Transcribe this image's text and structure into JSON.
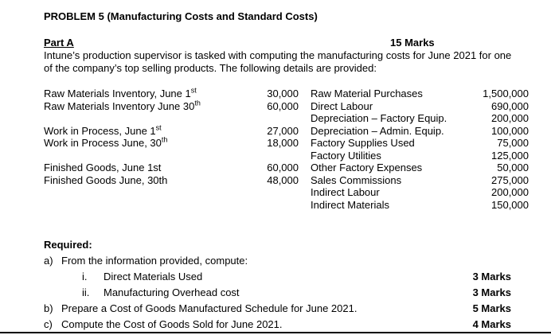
{
  "title": "PROBLEM 5 (Manufacturing Costs and Standard Costs)",
  "part_a": {
    "label": "Part A",
    "marks": "15 Marks",
    "intro": "Intune’s production supervisor is tasked with computing the manufacturing costs for June 2021 for one of the company’s top selling products. The following details are provided:"
  },
  "details_table": {
    "rows": [
      {
        "left": {
          "text": "Raw Materials Inventory, June 1",
          "sup": "st"
        },
        "left_value": "30,000",
        "right": "Raw Material Purchases",
        "right_value": "1,500,000"
      },
      {
        "left": {
          "text": "Raw Materials Inventory  June 30",
          "sup": "th"
        },
        "left_value": "60,000",
        "right": "Direct Labour",
        "right_value": "690,000"
      },
      {
        "left": null,
        "left_value": "",
        "right": "Depreciation – Factory Equip.",
        "right_value": "200,000"
      },
      {
        "left": {
          "text": "Work in Process, June 1",
          "sup": "st"
        },
        "left_value": "27,000",
        "right": "Depreciation – Admin. Equip.",
        "right_value": "100,000"
      },
      {
        "left": {
          "text": "Work in Process June, 30",
          "sup": "th"
        },
        "left_value": "18,000",
        "right": "Factory Supplies Used",
        "right_value": "75,000"
      },
      {
        "left": null,
        "left_value": "",
        "right": "Factory Utilities",
        "right_value": "125,000"
      },
      {
        "left": {
          "text": "Finished Goods, June 1st",
          "sup": ""
        },
        "left_value": "60,000",
        "right": "Other Factory Expenses",
        "right_value": "50,000"
      },
      {
        "left": {
          "text": "Finished Goods June, 30th",
          "sup": ""
        },
        "left_value": "48,000",
        "right": "Sales Commissions",
        "right_value": "275,000"
      },
      {
        "left": null,
        "left_value": "",
        "right": "Indirect Labour",
        "right_value": "200,000"
      },
      {
        "left": null,
        "left_value": "",
        "right": "Indirect Materials",
        "right_value": "150,000"
      }
    ]
  },
  "required": {
    "heading": "Required:",
    "items": [
      {
        "prefix": "a)",
        "text": "From the information provided, compute:",
        "marks": "",
        "level": 1
      },
      {
        "prefix": "i.",
        "text": "Direct Materials Used",
        "marks": "3 Marks",
        "level": 2
      },
      {
        "prefix": "ii.",
        "text": "Manufacturing Overhead cost",
        "marks": "3 Marks",
        "level": 2
      },
      {
        "prefix": "b)",
        "text": "Prepare a Cost of Goods Manufactured Schedule for June 2021.",
        "marks": "5 Marks",
        "level": 1
      },
      {
        "prefix": "c)",
        "text": "Compute the Cost of Goods Sold for June 2021.",
        "marks": "4 Marks",
        "level": 1
      }
    ]
  }
}
